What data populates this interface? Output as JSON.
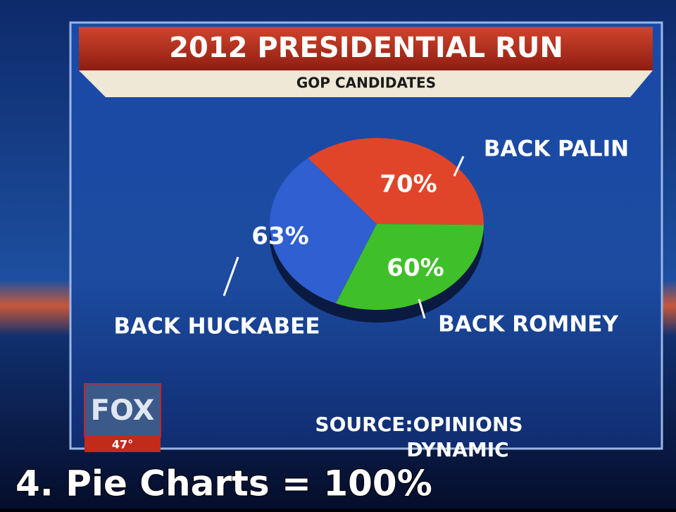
{
  "caption": "4. Pie Charts = 100%",
  "channel": {
    "logo": "FOX",
    "temperature": "47°"
  },
  "chart_data": {
    "type": "pie",
    "title": "2012 PRESIDENTIAL RUN",
    "subtitle": "GOP CANDIDATES",
    "categories": [
      "BACK PALIN",
      "BACK ROMNEY",
      "BACK HUCKABEE"
    ],
    "values": [
      70,
      60,
      63
    ],
    "value_labels": [
      "70%",
      "60%",
      "63%"
    ],
    "colors": [
      "#e0452a",
      "#3fc02a",
      "#2f5fd0"
    ],
    "source": "SOURCE:OPINIONS DYNAMIC"
  }
}
